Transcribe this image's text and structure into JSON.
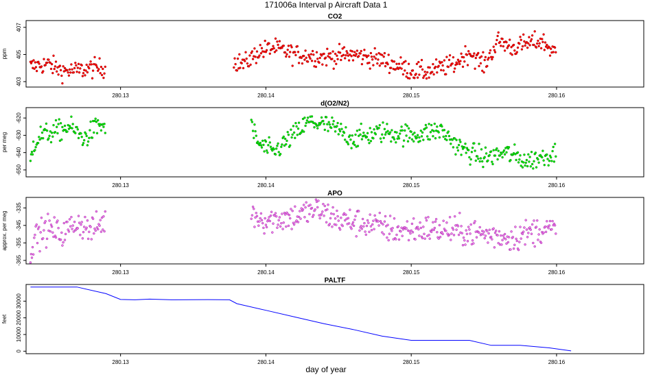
{
  "figure": {
    "title": "171006a   Interval p Aircraft Data 1",
    "xlabel": "day of year",
    "x_range": [
      280.1235,
      280.166
    ],
    "x_ticks": [
      280.13,
      280.14,
      280.15,
      280.16
    ],
    "x_tick_labels": [
      "280.13",
      "280.14",
      "280.15",
      "280.16"
    ]
  },
  "chart_data": [
    {
      "type": "scatter",
      "title": "CO2",
      "ylabel": "ppm",
      "ylim": [
        402.6,
        407.5
      ],
      "y_ticks": [
        403,
        405,
        407
      ],
      "y_tick_labels": [
        "403",
        "405",
        "407"
      ],
      "color": "#ff0000",
      "edge_color": "#8b0000",
      "noise": 0.35,
      "segments": [
        {
          "x": [
            280.1238,
            280.125,
            280.126,
            280.127,
            280.128,
            280.129
          ],
          "y": [
            404.1,
            404.3,
            403.8,
            403.8,
            404.0,
            404.0
          ]
        },
        {
          "x": [
            280.1378,
            280.1385,
            280.1395,
            280.1405,
            280.142,
            280.144,
            280.146,
            280.148,
            280.15,
            280.151,
            280.152,
            280.153,
            280.154,
            280.155,
            280.156,
            280.157,
            280.158,
            280.159,
            280.16
          ],
          "y": [
            404.5,
            404.3,
            405.2,
            405.5,
            405.0,
            404.8,
            405.0,
            404.6,
            403.8,
            403.7,
            404.0,
            404.3,
            405.2,
            404.2,
            406.0,
            405.5,
            405.8,
            406.0,
            405.0
          ]
        }
      ]
    },
    {
      "type": "scatter",
      "title": "d(O2/N2)",
      "ylabel": "per meg",
      "ylim": [
        -654,
        -614
      ],
      "y_ticks": [
        -650,
        -640,
        -630,
        -620
      ],
      "y_tick_labels": [
        "-650",
        "-640",
        "-630",
        "-620"
      ],
      "color": "#00ee00",
      "edge_color": "#006400",
      "noise": 3.0,
      "segments": [
        {
          "x": [
            280.1238,
            280.124,
            280.1245,
            280.1255,
            280.1265,
            280.1275,
            280.1285,
            280.129
          ],
          "y": [
            -646,
            -635,
            -630,
            -628,
            -625,
            -632,
            -624,
            -625
          ]
        },
        {
          "x": [
            280.139,
            280.1395,
            280.1405,
            280.1415,
            280.143,
            280.1445,
            280.146,
            280.148,
            280.15,
            280.152,
            280.1535,
            280.155,
            280.1565,
            280.158,
            280.16
          ],
          "y": [
            -625,
            -635,
            -640,
            -633,
            -622,
            -625,
            -632,
            -628,
            -630,
            -627,
            -638,
            -643,
            -640,
            -645,
            -640
          ]
        }
      ]
    },
    {
      "type": "scatter",
      "title": "APO",
      "ylabel": "approx. per meg",
      "ylim": [
        -367,
        -329
      ],
      "y_ticks": [
        -365,
        -355,
        -345,
        -335
      ],
      "y_tick_labels": [
        "-365",
        "-355",
        "-345",
        "-335"
      ],
      "color": "#ee82ee",
      "edge_color": "#8b008b",
      "noise": 4.0,
      "segments": [
        {
          "x": [
            280.1238,
            280.124,
            280.125,
            280.126,
            280.127,
            280.128,
            280.129
          ],
          "y": [
            -362,
            -352,
            -347,
            -350,
            -343,
            -348,
            -342
          ]
        },
        {
          "x": [
            280.139,
            280.14,
            280.142,
            280.1435,
            280.145,
            280.147,
            280.149,
            280.151,
            280.153,
            280.155,
            280.157,
            280.159,
            280.16
          ],
          "y": [
            -338,
            -342,
            -340,
            -336,
            -342,
            -344,
            -348,
            -347,
            -348,
            -350,
            -352,
            -347,
            -348
          ]
        }
      ]
    },
    {
      "type": "line",
      "title": "PALTF",
      "ylabel": "feet",
      "ylim": [
        -1500,
        40000
      ],
      "y_ticks": [
        0,
        10000,
        20000,
        30000
      ],
      "y_tick_labels": [
        "0",
        "10000",
        "20000",
        "30000"
      ],
      "color": "#0000ff",
      "x": [
        280.1238,
        280.127,
        280.129,
        280.13,
        280.131,
        280.132,
        280.1335,
        280.136,
        280.1375,
        280.138,
        280.14,
        280.142,
        280.144,
        280.146,
        280.148,
        280.15,
        280.154,
        280.1555,
        280.1575,
        280.1595,
        280.161
      ],
      "y": [
        38500,
        38500,
        34500,
        31000,
        30800,
        31200,
        30800,
        30900,
        30800,
        28500,
        24500,
        20500,
        16500,
        13000,
        9000,
        6500,
        6500,
        3500,
        3500,
        2000,
        200
      ]
    }
  ]
}
